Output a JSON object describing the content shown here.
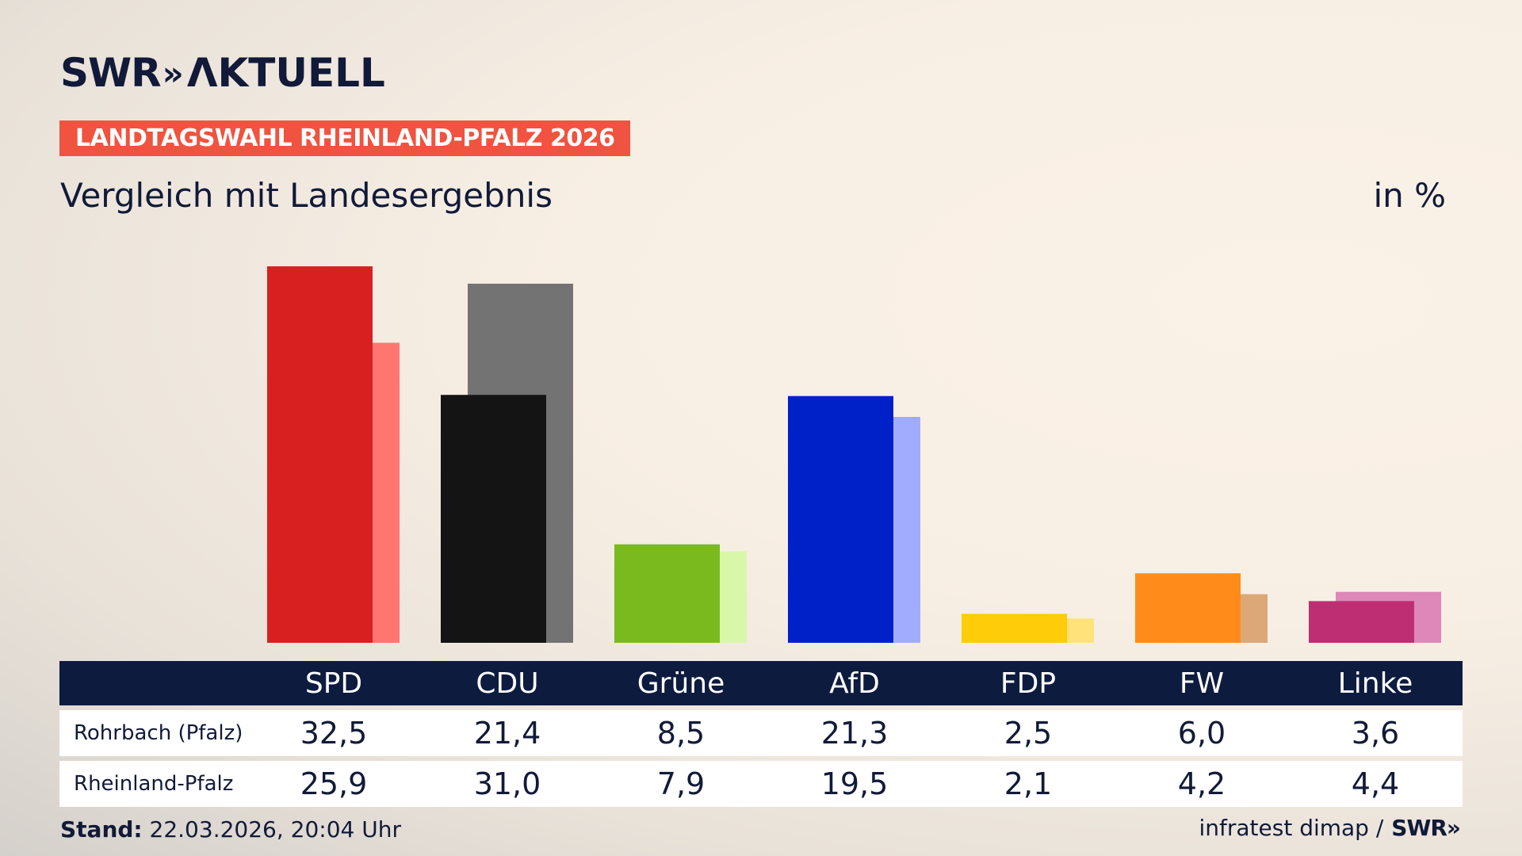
{
  "header": {
    "logo_swr": "SWR",
    "logo_chevrons": "»",
    "logo_aktuell": "ΛKTUELL",
    "badge": "LANDTAGSWAHL RHEINLAND-PFALZ 2026",
    "subtitle": "Vergleich mit Landesergebnis",
    "unit": "in %"
  },
  "chart_data": {
    "type": "bar",
    "categories": [
      "SPD",
      "CDU",
      "Grüne",
      "AfD",
      "FDP",
      "FW",
      "Linke"
    ],
    "series": [
      {
        "name": "Rohrbach (Pfalz)",
        "values": [
          32.5,
          21.4,
          8.5,
          21.3,
          2.5,
          6.0,
          3.6
        ]
      },
      {
        "name": "Rheinland-Pfalz",
        "values": [
          25.9,
          31.0,
          7.9,
          19.5,
          2.1,
          4.2,
          4.4
        ]
      }
    ],
    "value_labels": [
      [
        "32,5",
        "21,4",
        "8,5",
        "21,3",
        "2,5",
        "6,0",
        "3,6"
      ],
      [
        "25,9",
        "31,0",
        "7,9",
        "19,5",
        "2,1",
        "4,2",
        "4,4"
      ]
    ],
    "colors_primary": [
      "#d82020",
      "#141414",
      "#7aba1e",
      "#0020c8",
      "#ffcc0a",
      "#ff8c1a",
      "#be2e72"
    ],
    "colors_secondary": [
      "#ff7670",
      "#737373",
      "#d9f7a8",
      "#a2acff",
      "#ffe37a",
      "#dca878",
      "#dd88b8"
    ],
    "ylim": [
      0,
      34
    ],
    "grid": false,
    "legend": "none"
  },
  "table": {
    "row_labels": [
      "Rohrbach (Pfalz)",
      "Rheinland-Pfalz"
    ]
  },
  "footer": {
    "stand_label": "Stand:",
    "stand_value": "22.03.2026, 20:04 Uhr",
    "source": "infratest dimap /",
    "source_brand": "SWR»"
  }
}
